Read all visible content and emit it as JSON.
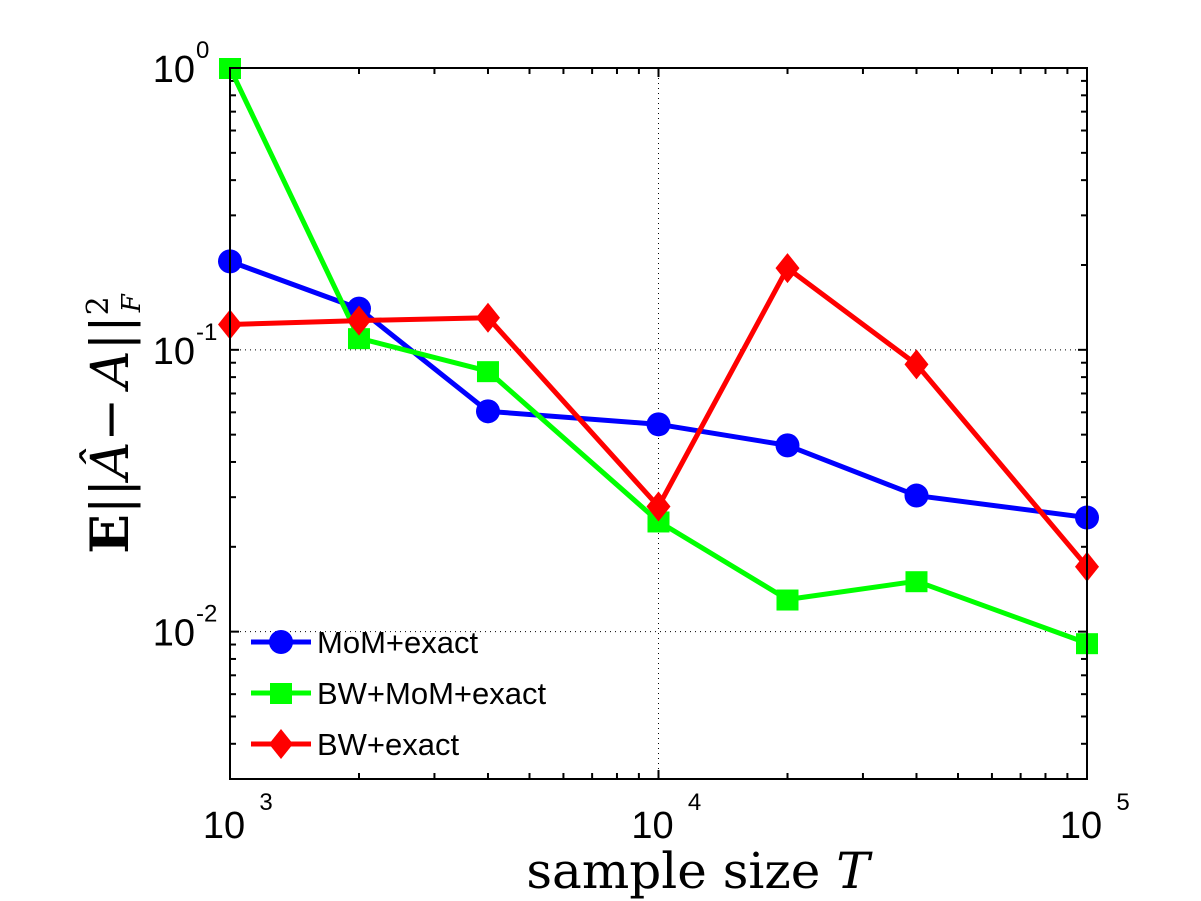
{
  "chart_data": {
    "type": "line",
    "title": "",
    "xlabel": "sample size T",
    "xlabel_parts": {
      "text": "sample size ",
      "var": "T"
    },
    "ylabel": "E||Â − A||²_F",
    "ylabel_parts": {
      "E": "E",
      "norm_open": "||",
      "Ahat": "Â",
      "minus": "−",
      "A": "A",
      "norm_close": "||",
      "sup": "2",
      "sub": "F"
    },
    "xscale": "log",
    "yscale": "log",
    "xlim": [
      1000,
      100000
    ],
    "ylim": [
      0.003,
      1
    ],
    "grid": "major-dotted",
    "legend_position": "bottom-left",
    "x_ticks": [
      {
        "value": 1000,
        "base": "10",
        "exp": "3"
      },
      {
        "value": 10000,
        "base": "10",
        "exp": "4"
      },
      {
        "value": 100000,
        "base": "10",
        "exp": "5"
      }
    ],
    "y_ticks": [
      {
        "value": 1,
        "base": "10",
        "exp": "0"
      },
      {
        "value": 0.1,
        "base": "10",
        "exp": "-1"
      },
      {
        "value": 0.01,
        "base": "10",
        "exp": "-2"
      }
    ],
    "x": [
      1000,
      2000,
      4000,
      10000,
      20000,
      40000,
      100000
    ],
    "series": [
      {
        "name": "MoM+exact",
        "color": "#0000ff",
        "marker": "circle",
        "values": [
          0.206,
          0.14,
          0.0605,
          0.0544,
          0.0458,
          0.0304,
          0.0254
        ]
      },
      {
        "name": "BW+MoM+exact",
        "color": "#00ff00",
        "marker": "square",
        "values": [
          1.0,
          0.11,
          0.084,
          0.0246,
          0.013,
          0.0151,
          0.0091
        ]
      },
      {
        "name": "BW+exact",
        "color": "#ff0000",
        "marker": "diamond",
        "values": [
          0.123,
          0.127,
          0.13,
          0.0278,
          0.195,
          0.0888,
          0.017
        ]
      }
    ]
  }
}
